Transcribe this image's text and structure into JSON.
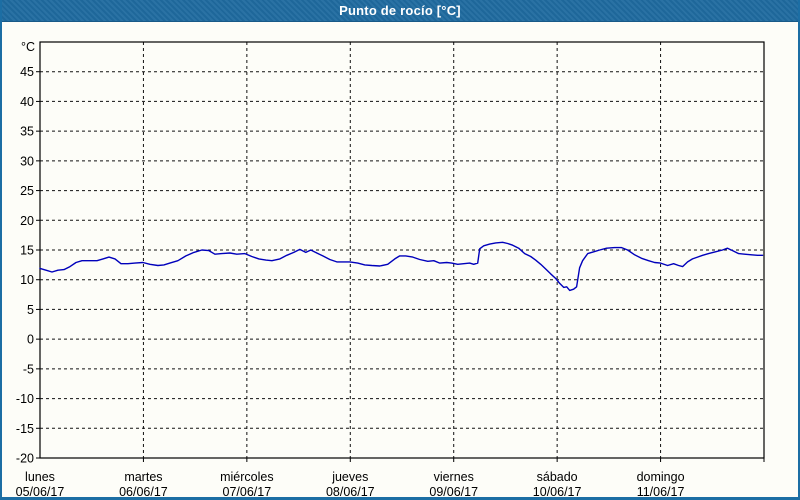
{
  "window": {
    "title": "Punto de rocío [°C]"
  },
  "colors": {
    "titlebar_bg": "#1f6a9f",
    "frame_border": "#1c6ea4",
    "page_bg": "#fdfdf8",
    "title_text": "#ffffff",
    "plot_border": "#000000",
    "grid": "#111111",
    "label_text": "#000000",
    "line": "#0000bb"
  },
  "chart_data": {
    "type": "line",
    "title": "Punto de rocío [°C]",
    "ylabel": "°C",
    "unit": "°C",
    "ylim": [
      -20,
      50
    ],
    "ytick_step": 5,
    "ytick_labels": [
      45,
      40,
      35,
      30,
      25,
      20,
      15,
      10,
      5,
      0,
      -5,
      -10,
      -15,
      -20
    ],
    "grid": true,
    "legend": "none",
    "x_axis": {
      "span_days": 7,
      "days": [
        {
          "name": "lunes",
          "date": "05/06/17"
        },
        {
          "name": "martes",
          "date": "06/06/17"
        },
        {
          "name": "miércoles",
          "date": "07/06/17"
        },
        {
          "name": "jueves",
          "date": "08/06/17"
        },
        {
          "name": "viernes",
          "date": "09/06/17"
        },
        {
          "name": "sábado",
          "date": "10/06/17"
        },
        {
          "name": "domingo",
          "date": "11/06/17"
        }
      ]
    },
    "series": [
      {
        "name": "Punto de rocío",
        "color": "#0000bb",
        "points": [
          [
            0.0,
            11.9
          ],
          [
            0.058,
            11.6
          ],
          [
            0.116,
            11.3
          ],
          [
            0.174,
            11.6
          ],
          [
            0.232,
            11.7
          ],
          [
            0.29,
            12.2
          ],
          [
            0.348,
            12.9
          ],
          [
            0.406,
            13.2
          ],
          [
            0.483,
            13.2
          ],
          [
            0.551,
            13.2
          ],
          [
            0.609,
            13.5
          ],
          [
            0.667,
            13.8
          ],
          [
            0.725,
            13.5
          ],
          [
            0.783,
            12.7
          ],
          [
            0.85,
            12.7
          ],
          [
            0.918,
            12.8
          ],
          [
            0.995,
            12.9
          ],
          [
            1.063,
            12.6
          ],
          [
            1.14,
            12.4
          ],
          [
            1.198,
            12.5
          ],
          [
            1.256,
            12.8
          ],
          [
            1.333,
            13.2
          ],
          [
            1.411,
            14.0
          ],
          [
            1.488,
            14.6
          ],
          [
            1.565,
            15.0
          ],
          [
            1.633,
            14.9
          ],
          [
            1.691,
            14.3
          ],
          [
            1.758,
            14.4
          ],
          [
            1.836,
            14.5
          ],
          [
            1.903,
            14.3
          ],
          [
            1.981,
            14.4
          ],
          [
            2.048,
            13.9
          ],
          [
            2.116,
            13.5
          ],
          [
            2.184,
            13.3
          ],
          [
            2.242,
            13.2
          ],
          [
            2.319,
            13.5
          ],
          [
            2.386,
            14.1
          ],
          [
            2.454,
            14.6
          ],
          [
            2.512,
            15.1
          ],
          [
            2.57,
            14.6
          ],
          [
            2.618,
            15.0
          ],
          [
            2.676,
            14.5
          ],
          [
            2.734,
            14.0
          ],
          [
            2.802,
            13.4
          ],
          [
            2.87,
            13.0
          ],
          [
            2.937,
            13.0
          ],
          [
            2.995,
            13.0
          ],
          [
            3.072,
            12.8
          ],
          [
            3.14,
            12.5
          ],
          [
            3.208,
            12.4
          ],
          [
            3.285,
            12.3
          ],
          [
            3.362,
            12.6
          ],
          [
            3.43,
            13.5
          ],
          [
            3.478,
            14.0
          ],
          [
            3.536,
            14.0
          ],
          [
            3.604,
            13.8
          ],
          [
            3.671,
            13.4
          ],
          [
            3.749,
            13.1
          ],
          [
            3.807,
            13.2
          ],
          [
            3.865,
            12.8
          ],
          [
            3.932,
            12.9
          ],
          [
            3.981,
            12.8
          ],
          [
            4.039,
            12.6
          ],
          [
            4.097,
            12.7
          ],
          [
            4.155,
            12.8
          ],
          [
            4.193,
            12.6
          ],
          [
            4.232,
            12.8
          ],
          [
            4.251,
            15.2
          ],
          [
            4.29,
            15.7
          ],
          [
            4.348,
            16.0
          ],
          [
            4.406,
            16.2
          ],
          [
            4.473,
            16.3
          ],
          [
            4.522,
            16.1
          ],
          [
            4.57,
            15.8
          ],
          [
            4.628,
            15.3
          ],
          [
            4.686,
            14.4
          ],
          [
            4.744,
            13.9
          ],
          [
            4.792,
            13.3
          ],
          [
            4.841,
            12.6
          ],
          [
            4.889,
            11.8
          ],
          [
            4.937,
            11.0
          ],
          [
            4.986,
            10.2
          ],
          [
            5.024,
            9.4
          ],
          [
            5.063,
            8.7
          ],
          [
            5.092,
            8.8
          ],
          [
            5.121,
            8.2
          ],
          [
            5.159,
            8.4
          ],
          [
            5.188,
            8.8
          ],
          [
            5.217,
            12.0
          ],
          [
            5.246,
            13.2
          ],
          [
            5.295,
            14.4
          ],
          [
            5.353,
            14.7
          ],
          [
            5.411,
            15.0
          ],
          [
            5.478,
            15.3
          ],
          [
            5.556,
            15.4
          ],
          [
            5.623,
            15.4
          ],
          [
            5.681,
            15.0
          ],
          [
            5.749,
            14.2
          ],
          [
            5.816,
            13.6
          ],
          [
            5.884,
            13.2
          ],
          [
            5.942,
            12.9
          ],
          [
            6.0,
            12.8
          ],
          [
            6.068,
            12.4
          ],
          [
            6.126,
            12.7
          ],
          [
            6.174,
            12.4
          ],
          [
            6.213,
            12.2
          ],
          [
            6.261,
            13.0
          ],
          [
            6.309,
            13.5
          ],
          [
            6.357,
            13.8
          ],
          [
            6.406,
            14.1
          ],
          [
            6.464,
            14.4
          ],
          [
            6.531,
            14.7
          ],
          [
            6.599,
            15.0
          ],
          [
            6.647,
            15.3
          ],
          [
            6.696,
            14.9
          ],
          [
            6.754,
            14.4
          ],
          [
            6.812,
            14.3
          ],
          [
            6.879,
            14.2
          ],
          [
            6.937,
            14.1
          ],
          [
            6.986,
            14.1
          ]
        ]
      }
    ]
  }
}
